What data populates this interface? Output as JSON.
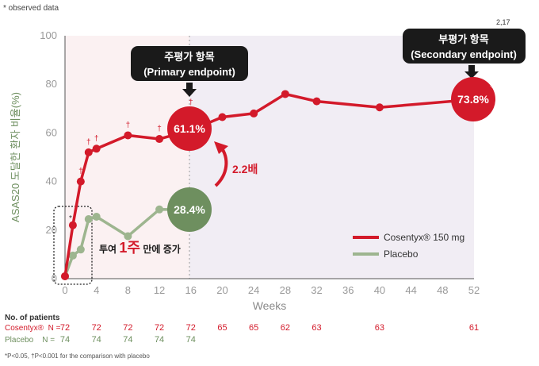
{
  "top_note": "* observed data",
  "ref_sup": "2,17",
  "chart_data": {
    "type": "line",
    "ylabel": "ASAS20 도달한 환자 비율(%)",
    "xlabel": "Weeks",
    "ylim": [
      0,
      100
    ],
    "xlim": [
      0,
      52
    ],
    "y_ticks": [
      0,
      20,
      40,
      60,
      80,
      100
    ],
    "x_ticks": [
      0,
      4,
      8,
      12,
      16,
      20,
      24,
      28,
      32,
      36,
      40,
      44,
      48,
      52
    ],
    "grid": false,
    "legend_position": "bottom-right",
    "series": [
      {
        "name": "Cosentyx® 150 mg",
        "color": "#d31a2a",
        "x": [
          0,
          1,
          2,
          3,
          4,
          8,
          12,
          16,
          20,
          24,
          28,
          32,
          40,
          52
        ],
        "y": [
          1,
          22,
          40,
          52,
          53.5,
          59,
          57.5,
          61.1,
          66.5,
          68,
          76,
          73,
          70.5,
          73.8
        ],
        "daggers_x": [
          2,
          3,
          4,
          8,
          12,
          16
        ]
      },
      {
        "name": "Placebo",
        "color": "#9db58f",
        "x": [
          0,
          1,
          2,
          3,
          4,
          8,
          12,
          16
        ],
        "y": [
          1,
          9.5,
          12,
          24.5,
          25.5,
          17.5,
          28.5,
          28.4
        ]
      }
    ],
    "annotations": {
      "primary_label_line1": "주평가 항목",
      "primary_label_line2": "(Primary endpoint)",
      "secondary_label_line1": "부평가 항목",
      "secondary_label_line2": "(Secondary endpoint)",
      "cos_wk16_value": "61.1%",
      "pbo_wk16_value": "28.4%",
      "cos_wk52_value": "73.8%",
      "ratio_text": "2.2배",
      "week1_note_prefix": "투여 ",
      "week1_note_emph": "1주",
      "week1_note_suffix": " 만에 증가",
      "star_marker": "*",
      "dagger": "†",
      "plus": "+"
    }
  },
  "patients": {
    "title": "No. of patients",
    "cosentyx_label": "Cosentyx®  N = ",
    "placebo_label": "Placebo    N = ",
    "cosentyx_x": [
      0,
      4,
      8,
      12,
      16,
      20,
      24,
      28,
      32,
      40,
      52
    ],
    "cosentyx_n": [
      "72",
      "72",
      "72",
      "72",
      "72",
      "65",
      "65",
      "62",
      "63",
      "63",
      "61"
    ],
    "placebo_x": [
      0,
      4,
      8,
      12,
      16
    ],
    "placebo_n": [
      "74",
      "74",
      "74",
      "74",
      "74"
    ]
  },
  "footnote": "*P<0.05, †P<0.001 for the comparison with placebo"
}
